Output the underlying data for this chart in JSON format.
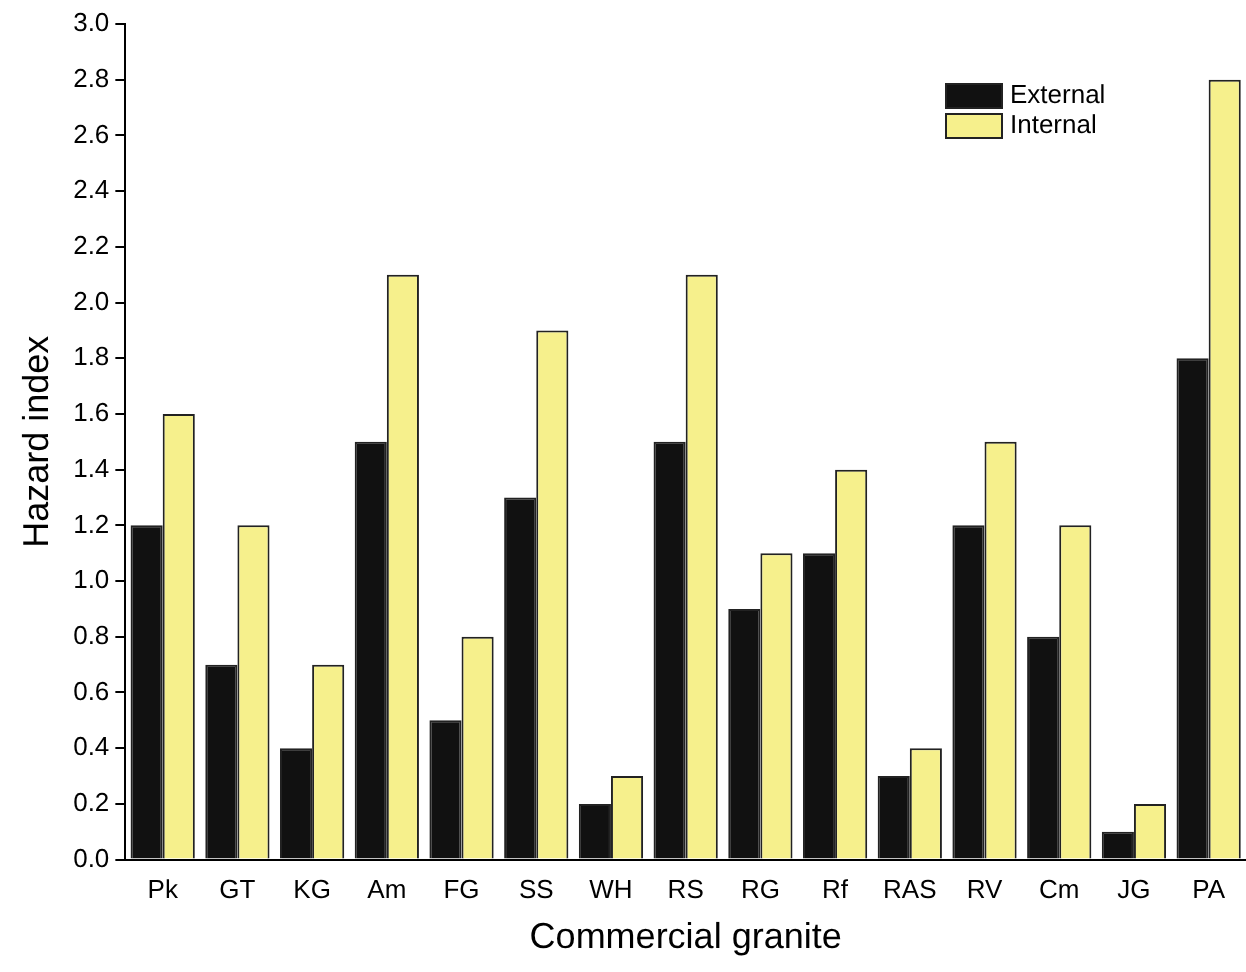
{
  "chart_data": {
    "type": "bar",
    "xlabel": "Commercial granite",
    "ylabel": "Hazard index",
    "categories": [
      "Pk",
      "GT",
      "KG",
      "Am",
      "FG",
      "SS",
      "WH",
      "RS",
      "RG",
      "Rf",
      "RAS",
      "RV",
      "Cm",
      "JG",
      "PA"
    ],
    "series": [
      {
        "name": "External",
        "color": "#111111",
        "values": [
          1.2,
          0.7,
          0.4,
          1.5,
          0.5,
          1.3,
          0.2,
          1.5,
          0.9,
          1.1,
          0.3,
          1.2,
          0.8,
          0.1,
          1.8
        ]
      },
      {
        "name": "Internal",
        "color": "#f6f08c",
        "values": [
          1.6,
          1.2,
          0.7,
          2.1,
          0.8,
          1.9,
          0.3,
          2.1,
          1.1,
          1.4,
          0.4,
          1.5,
          1.2,
          0.2,
          2.8
        ]
      }
    ],
    "ylim": [
      0,
      3
    ],
    "yticks": [
      {
        "value": 0,
        "label": "0.0"
      },
      {
        "value": 0.2,
        "label": "0.2"
      },
      {
        "value": 0.4,
        "label": "0.4"
      },
      {
        "value": 0.6,
        "label": "0.6"
      },
      {
        "value": 0.8,
        "label": "0.8"
      },
      {
        "value": 1,
        "label": "1.0"
      },
      {
        "value": 1.2,
        "label": "1.2"
      },
      {
        "value": 1.4,
        "label": "1.4"
      },
      {
        "value": 1.6,
        "label": "1.6"
      },
      {
        "value": 1.8,
        "label": "1.8"
      },
      {
        "value": 2,
        "label": "2.0"
      },
      {
        "value": 2.2,
        "label": "2.2"
      },
      {
        "value": 2.4,
        "label": "2.4"
      },
      {
        "value": 2.6,
        "label": "2.6"
      },
      {
        "value": 2.8,
        "label": "2.8"
      },
      {
        "value": 3,
        "label": "3.0"
      }
    ],
    "grid": false,
    "legend": "top right"
  }
}
